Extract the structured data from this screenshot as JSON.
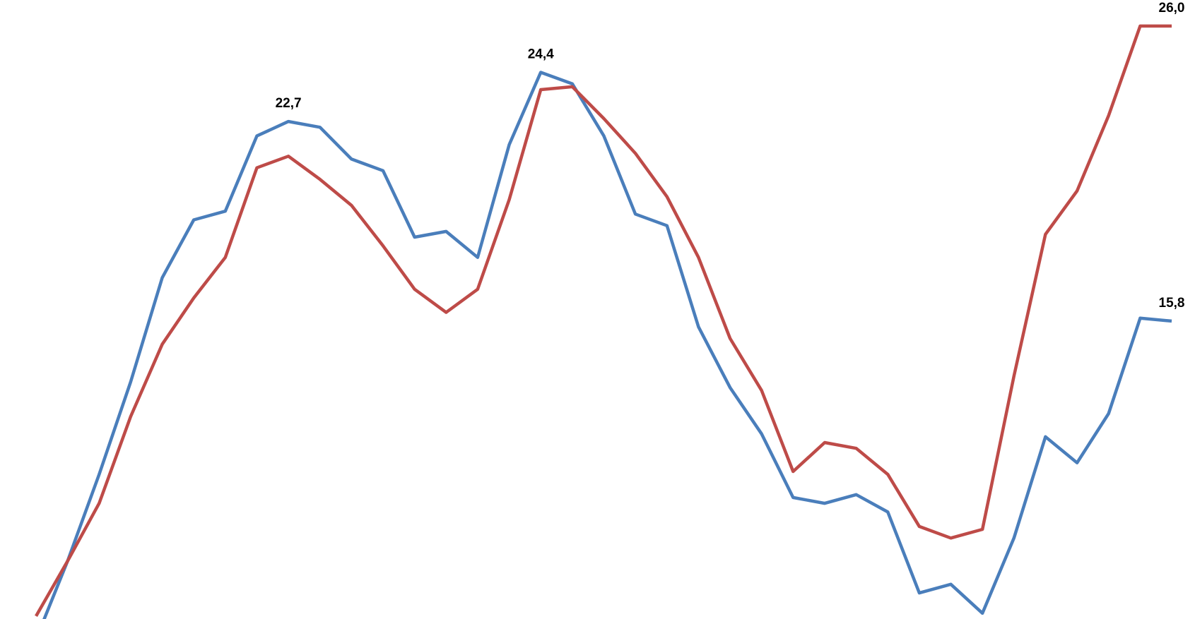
{
  "chart_data": {
    "type": "line",
    "categories": [
      null,
      null,
      null,
      null,
      null,
      null,
      null,
      null,
      null,
      null,
      null,
      null,
      null,
      null,
      null,
      null,
      null,
      null,
      null,
      null,
      null,
      null,
      null,
      null,
      null,
      null,
      null,
      null,
      null,
      null,
      null,
      null,
      null,
      null,
      null,
      null,
      null
    ],
    "ylim": [
      5.5,
      26.9
    ],
    "series": [
      {
        "color": "#4a7ebb",
        "values": [
          4.8,
          7.5,
          10.5,
          13.7,
          17.3,
          19.3,
          19.6,
          22.2,
          22.7,
          22.5,
          21.4,
          21.0,
          18.7,
          18.9,
          18.0,
          21.9,
          24.4,
          24.0,
          22.2,
          19.5,
          19.1,
          15.6,
          13.5,
          11.9,
          9.7,
          9.5,
          9.8,
          9.2,
          6.4,
          6.7,
          5.7,
          8.3,
          11.8,
          10.9,
          12.6,
          15.9,
          15.8
        ],
        "value_labels": [
          null,
          null,
          null,
          null,
          null,
          null,
          null,
          null,
          "22,7",
          null,
          null,
          null,
          null,
          null,
          null,
          null,
          "24,4",
          null,
          null,
          null,
          null,
          null,
          null,
          null,
          null,
          null,
          null,
          null,
          null,
          null,
          null,
          null,
          null,
          null,
          null,
          null,
          "15,8"
        ]
      },
      {
        "color": "#be4b48",
        "values": [
          5.6,
          7.5,
          9.5,
          12.5,
          15.0,
          16.6,
          18.0,
          21.1,
          21.5,
          20.7,
          19.8,
          18.4,
          16.9,
          16.1,
          16.9,
          20.0,
          23.8,
          23.9,
          22.8,
          21.6,
          20.1,
          18.0,
          15.2,
          13.4,
          10.6,
          11.6,
          11.4,
          10.5,
          8.7,
          8.3,
          8.6,
          13.9,
          18.8,
          20.3,
          22.9,
          26.0,
          26.0
        ],
        "value_labels": [
          null,
          null,
          null,
          null,
          null,
          null,
          null,
          null,
          null,
          null,
          null,
          null,
          null,
          null,
          null,
          null,
          null,
          null,
          null,
          null,
          null,
          null,
          null,
          null,
          null,
          null,
          null,
          null,
          null,
          null,
          null,
          null,
          null,
          null,
          null,
          null,
          "26,0"
        ]
      }
    ]
  }
}
